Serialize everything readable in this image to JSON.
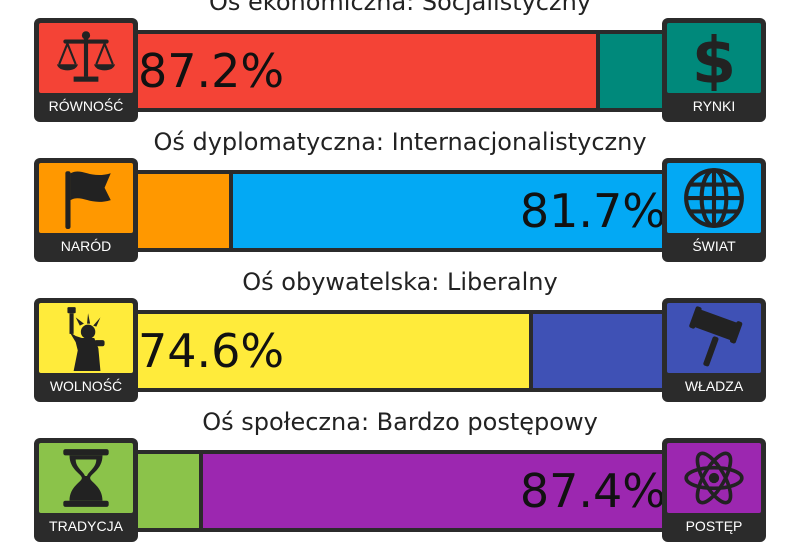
{
  "colors": {
    "frame": "#2b2b2b",
    "red": "#f44336",
    "teal": "#00897b",
    "orange": "#ff9800",
    "blue": "#03a9f4",
    "yellow": "#ffeb3b",
    "indigo": "#3f51b5",
    "green": "#8bc34a",
    "purple": "#9c27b0"
  },
  "axes": [
    {
      "title": "Oś ekonomiczna: Socjalistyczny",
      "left_label": "RÓWNOŚĆ",
      "left_icon": "scales-icon",
      "left_color": "#f44336",
      "right_label": "RYNKI",
      "right_icon": "dollar-icon",
      "right_color": "#00897b",
      "left_value": 87.2,
      "right_value": 12.8,
      "pct_text": "87.2%",
      "pct_side": "left"
    },
    {
      "title": "Oś dyplomatyczna: Internacjonalistyczny",
      "left_label": "NARÓD",
      "left_icon": "flag-icon",
      "left_color": "#ff9800",
      "right_label": "ŚWIAT",
      "right_icon": "globe-icon",
      "right_color": "#03a9f4",
      "left_value": 18.3,
      "right_value": 81.7,
      "pct_text": "81.7%",
      "pct_side": "right"
    },
    {
      "title": "Oś obywatelska: Liberalny",
      "left_label": "WOLNOŚĆ",
      "left_icon": "statue-of-liberty-icon",
      "left_color": "#ffeb3b",
      "right_label": "WŁADZA",
      "right_icon": "gavel-icon",
      "right_color": "#3f51b5",
      "left_value": 74.6,
      "right_value": 25.4,
      "pct_text": "74.6%",
      "pct_side": "left"
    },
    {
      "title": "Oś społeczna: Bardzo postępowy",
      "left_label": "TRADYCJA",
      "left_icon": "hourglass-icon",
      "left_color": "#8bc34a",
      "right_label": "POSTĘP",
      "right_icon": "atom-icon",
      "right_color": "#9c27b0",
      "left_value": 12.6,
      "right_value": 87.4,
      "pct_text": "87.4%",
      "pct_side": "right"
    }
  ],
  "chart_data": {
    "type": "bar",
    "categories": [
      "Oś ekonomiczna",
      "Oś dyplomatyczna",
      "Oś obywatelska",
      "Oś społeczna"
    ],
    "series": [
      {
        "name": "",
        "values": [
          87.2,
          18.3,
          74.6,
          12.6
        ]
      },
      {
        "name": "",
        "values": [
          12.8,
          81.7,
          25.4,
          87.4
        ]
      }
    ],
    "left_poles": [
      "RÓWNOŚĆ",
      "NARÓD",
      "WOLNOŚĆ",
      "TRADYCJA"
    ],
    "right_poles": [
      "RYNKI",
      "ŚWIAT",
      "WŁADZA",
      "POSTĘP"
    ],
    "results": [
      "Socjalistyczny",
      "Internacjonalistyczny",
      "Liberalny",
      "Bardzo postępowy"
    ],
    "ylim": [
      0,
      100
    ]
  }
}
